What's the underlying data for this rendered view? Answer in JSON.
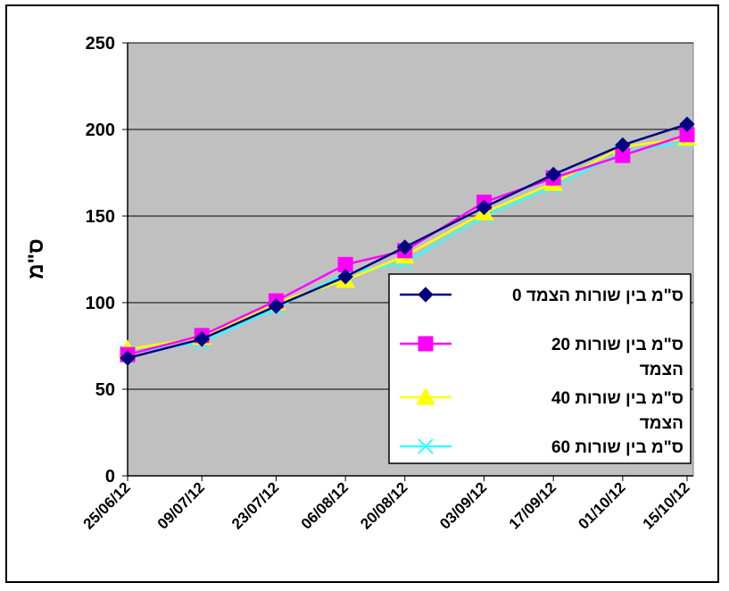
{
  "chart_data": {
    "type": "line",
    "title": "",
    "xlabel": "",
    "ylabel": "ס\"מ",
    "ylim": [
      0,
      250
    ],
    "yticks": [
      0,
      50,
      100,
      150,
      200,
      250
    ],
    "categories": [
      "25/06/12",
      "09/07/12",
      "23/07/12",
      "06/08/12",
      "20/08/12",
      "03/09/12",
      "17/09/12",
      "01/10/12",
      "15/10/12"
    ],
    "x": [
      "2012-06-25",
      "2012-07-10",
      "2012-07-25",
      "2012-08-08",
      "2012-08-20",
      "2012-09-05",
      "2012-09-19",
      "2012-10-03",
      "2012-10-16"
    ],
    "grid": "horizontal",
    "plot_background": "#c0c0c0",
    "legend_position": "right",
    "series": [
      {
        "name": "ס\"מ בין שורות הצמד 0",
        "color": "#000080",
        "marker": "diamond",
        "values": [
          68,
          79,
          98,
          115,
          132,
          155,
          174,
          191,
          203
        ]
      },
      {
        "name": "ס\"מ בין שורות 20 הצמד",
        "color": "#ff00ff",
        "marker": "square",
        "values": [
          70,
          81,
          101,
          122,
          130,
          158,
          172,
          185,
          197
        ]
      },
      {
        "name": "ס\"מ בין שורות 40 הצמד",
        "color": "#ffff00",
        "marker": "triangle",
        "values": [
          73,
          80,
          100,
          113,
          127,
          152,
          169,
          190,
          195
        ]
      },
      {
        "name": "ס\"מ בין שורות 60",
        "color": "#33ffff",
        "marker": "x",
        "values": [
          71,
          77,
          97,
          117,
          123,
          150,
          167,
          187,
          193
        ]
      }
    ]
  }
}
